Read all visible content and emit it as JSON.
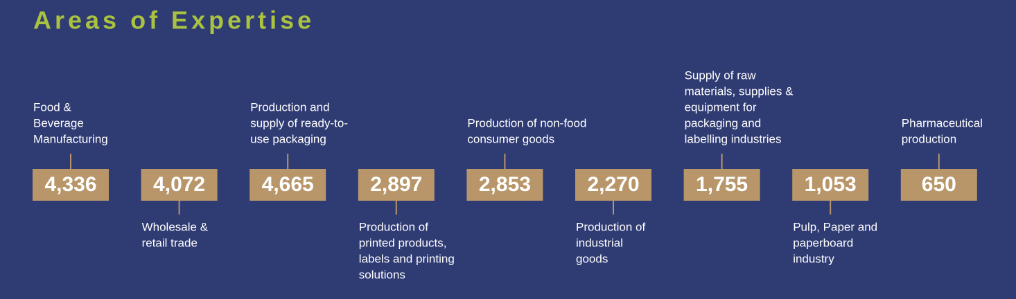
{
  "header": {
    "title": "Areas of Expertise"
  },
  "items": [
    {
      "value": "4,336",
      "label": [
        "Food &",
        "Beverage",
        "Manufacturing"
      ]
    },
    {
      "value": "4,072",
      "label": [
        "Wholesale &",
        "retail trade"
      ]
    },
    {
      "value": "4,665",
      "label": [
        "Production and",
        "supply of ready-to-",
        "use packaging"
      ]
    },
    {
      "value": "2,897",
      "label": [
        "Production of",
        "printed products,",
        "labels and printing",
        "solutions"
      ]
    },
    {
      "value": "2,853",
      "label": [
        "Production of non-food",
        "consumer goods"
      ]
    },
    {
      "value": "2,270",
      "label": [
        "Production of",
        "industrial",
        "goods"
      ]
    },
    {
      "value": "1,755",
      "label": [
        "Supply of raw",
        "materials, supplies &",
        "equipment for",
        "packaging and",
        "labelling industries"
      ]
    },
    {
      "value": "1,053",
      "label": [
        "Pulp, Paper and",
        "paperboard",
        "industry"
      ]
    },
    {
      "value": "650",
      "label": [
        "Pharmaceutical",
        "production"
      ]
    }
  ]
}
